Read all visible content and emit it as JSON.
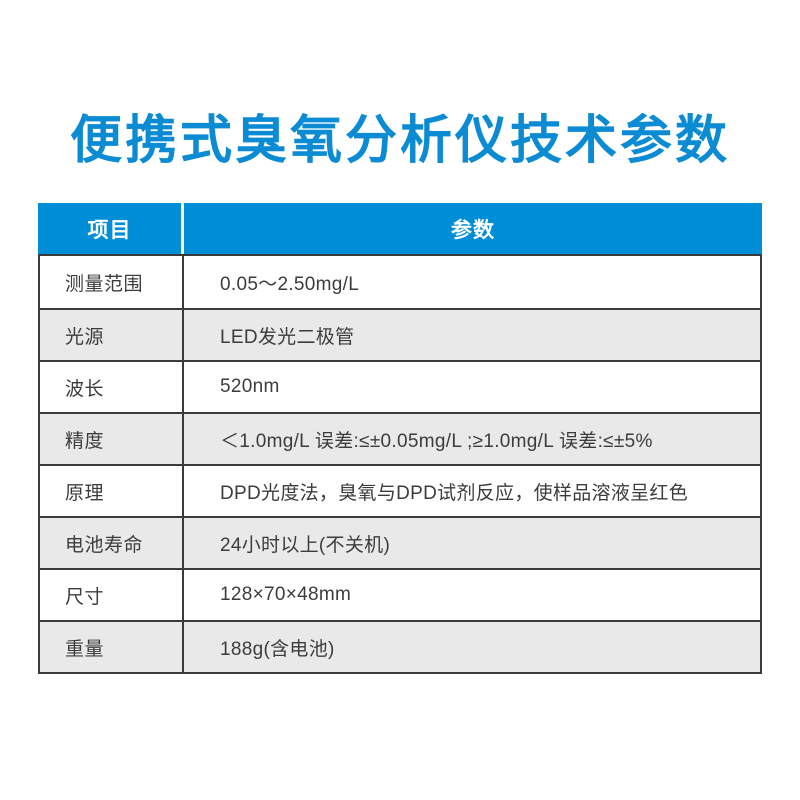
{
  "page": {
    "title": "便携式臭氧分析仪技术参数"
  },
  "colors": {
    "title-blue": "#0b8bd3",
    "header-blue": "#008fd7",
    "row-alt": "#e9e9e9",
    "border-dark": "#3a3a3a",
    "text-dark": "#3c3c3c"
  },
  "table": {
    "headers": {
      "item": "项目",
      "value": "参数"
    },
    "rows": [
      {
        "item": "测量范围",
        "value": "0.05～2.50mg/L"
      },
      {
        "item": "光源",
        "value": "LED发光二极管"
      },
      {
        "item": "波长",
        "value": "520nm"
      },
      {
        "item": "精度",
        "value": "＜1.0mg/L 误差:≤±0.05mg/L ;≥1.0mg/L 误差:≤±5%"
      },
      {
        "item": "原理",
        "value": "DPD光度法，臭氧与DPD试剂反应，使样品溶液呈红色"
      },
      {
        "item": "电池寿命",
        "value": "24小时以上(不关机)"
      },
      {
        "item": "尺寸",
        "value": "128×70×48mm"
      },
      {
        "item": "重量",
        "value": "188g(含电池)"
      }
    ]
  }
}
